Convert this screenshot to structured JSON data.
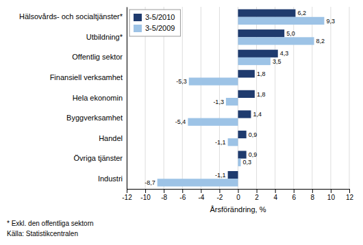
{
  "chart_data": {
    "type": "bar",
    "orientation": "horizontal",
    "categories": [
      "Industri",
      "Övriga tjänster",
      "Handel",
      "Byggverksamhet",
      "Hela ekonomin",
      "Finansiell verksamhet",
      "Offentlig sektor",
      "Utbildning*",
      "Hälsovårds- och socialtjänster*"
    ],
    "series": [
      {
        "name": "3-5/2010",
        "color": "#1F3B6E",
        "values": [
          -1.1,
          0.9,
          0.9,
          1.4,
          1.8,
          1.8,
          4.3,
          5.0,
          6.2
        ],
        "value_labels": [
          "-1,1",
          "0,9",
          "0,9",
          "1,4",
          "1,8",
          "1,8",
          "4,3",
          "5,0",
          "6,2"
        ]
      },
      {
        "name": "3-5/2009",
        "color": "#9DC3E6",
        "values": [
          -8.7,
          0.3,
          -1.1,
          -5.4,
          -1.3,
          -5.3,
          3.5,
          8.2,
          9.3
        ],
        "value_labels": [
          "-8,7",
          "0,3",
          "-1,1",
          "-5,4",
          "-1,3",
          "-5,3",
          "3,5",
          "8,2",
          "9,3"
        ]
      }
    ],
    "xlabel": "Årsförändring, %",
    "xlim": [
      -12,
      12
    ],
    "xticks": [
      -12,
      -10,
      -8,
      -6,
      -4,
      -2,
      0,
      2,
      4,
      6,
      8,
      10,
      12
    ],
    "grid": true,
    "legend": "upper left",
    "data_labels": true,
    "annotations": [
      "* Exkl. den offentliga sektorn",
      "Källa: Statistikcentralen"
    ]
  }
}
